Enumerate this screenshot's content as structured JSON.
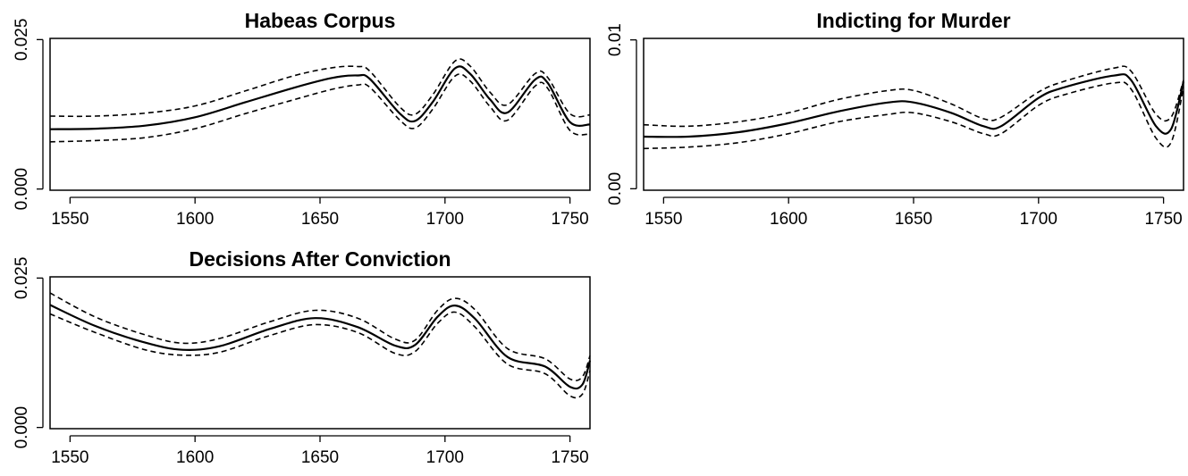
{
  "chart_data": [
    {
      "type": "line",
      "title": "Habeas Corpus",
      "xlabel": "",
      "ylabel": "",
      "xlim": [
        1542,
        1758
      ],
      "ylim": [
        -0.0002,
        0.0252
      ],
      "x_ticks": [
        1550,
        1600,
        1650,
        1700,
        1750
      ],
      "y_ticks": [
        0.0,
        0.025
      ],
      "y_tick_labels": [
        "0.000",
        "0.025"
      ],
      "grid": false,
      "x": [
        1542,
        1560,
        1580,
        1600,
        1620,
        1640,
        1655,
        1665,
        1670,
        1682,
        1688,
        1695,
        1704,
        1710,
        1718,
        1725,
        1736,
        1741,
        1750,
        1758
      ],
      "series": [
        {
          "style": "solid",
          "values": [
            0.01,
            0.0101,
            0.0106,
            0.012,
            0.0145,
            0.017,
            0.0186,
            0.019,
            0.0184,
            0.0126,
            0.0114,
            0.0145,
            0.0202,
            0.0193,
            0.015,
            0.0128,
            0.0183,
            0.0178,
            0.0112,
            0.0108
          ]
        },
        {
          "style": "dashed",
          "values": [
            0.0122,
            0.0122,
            0.0127,
            0.0139,
            0.0164,
            0.019,
            0.0203,
            0.0205,
            0.0197,
            0.0137,
            0.0125,
            0.0157,
            0.0214,
            0.0206,
            0.0162,
            0.0141,
            0.0193,
            0.0187,
            0.0126,
            0.0124
          ]
        },
        {
          "style": "dashed",
          "values": [
            0.0079,
            0.0081,
            0.0086,
            0.0101,
            0.0126,
            0.015,
            0.0167,
            0.0174,
            0.017,
            0.0115,
            0.0102,
            0.0133,
            0.0189,
            0.0181,
            0.0138,
            0.0115,
            0.0172,
            0.0169,
            0.0098,
            0.0092
          ]
        }
      ]
    },
    {
      "type": "line",
      "title": "Indicting for Murder",
      "xlabel": "",
      "ylabel": "",
      "xlim": [
        1542,
        1758
      ],
      "ylim": [
        -0.0001,
        0.0101
      ],
      "x_ticks": [
        1550,
        1600,
        1650,
        1700,
        1750
      ],
      "y_ticks": [
        0.0,
        0.01
      ],
      "y_tick_labels": [
        "0.00",
        "0.01"
      ],
      "grid": false,
      "x": [
        1542,
        1560,
        1580,
        1600,
        1620,
        1640,
        1650,
        1665,
        1678,
        1685,
        1700,
        1710,
        1730,
        1737,
        1747,
        1753,
        1758
      ],
      "series": [
        {
          "style": "solid",
          "values": [
            0.0035,
            0.0035,
            0.0038,
            0.0044,
            0.0052,
            0.0058,
            0.0058,
            0.0051,
            0.0042,
            0.0042,
            0.0061,
            0.0068,
            0.0076,
            0.0073,
            0.0042,
            0.004,
            0.0072
          ]
        },
        {
          "style": "dashed",
          "values": [
            0.0043,
            0.0042,
            0.0045,
            0.0051,
            0.006,
            0.0066,
            0.0066,
            0.0057,
            0.0047,
            0.0048,
            0.0065,
            0.0072,
            0.0081,
            0.0079,
            0.005,
            0.0048,
            0.0073
          ]
        },
        {
          "style": "dashed",
          "values": [
            0.0027,
            0.0028,
            0.0031,
            0.0037,
            0.0045,
            0.005,
            0.0051,
            0.0045,
            0.0037,
            0.0037,
            0.0056,
            0.0063,
            0.0071,
            0.0067,
            0.0034,
            0.0031,
            0.0068
          ]
        }
      ]
    },
    {
      "type": "line",
      "title": "Decisions After Conviction",
      "xlabel": "",
      "ylabel": "",
      "xlim": [
        1542,
        1758
      ],
      "ylim": [
        -0.0002,
        0.0252
      ],
      "x_ticks": [
        1550,
        1600,
        1650,
        1700,
        1750
      ],
      "y_ticks": [
        0.0,
        0.025
      ],
      "y_tick_labels": [
        "0.000",
        "0.025"
      ],
      "grid": false,
      "x": [
        1542,
        1560,
        1580,
        1595,
        1610,
        1630,
        1648,
        1665,
        1680,
        1688,
        1697,
        1704,
        1712,
        1725,
        1740,
        1750,
        1755,
        1758
      ],
      "series": [
        {
          "style": "solid",
          "values": [
            0.0205,
            0.017,
            0.0142,
            0.013,
            0.0136,
            0.0165,
            0.0183,
            0.0168,
            0.0137,
            0.0138,
            0.0185,
            0.0204,
            0.0182,
            0.0118,
            0.0102,
            0.0068,
            0.0072,
            0.0112
          ]
        },
        {
          "style": "dashed",
          "values": [
            0.0225,
            0.0185,
            0.0155,
            0.0141,
            0.0149,
            0.0177,
            0.0196,
            0.0183,
            0.0148,
            0.0146,
            0.0196,
            0.0216,
            0.0197,
            0.0132,
            0.0115,
            0.0081,
            0.0085,
            0.012
          ]
        },
        {
          "style": "dashed",
          "values": [
            0.019,
            0.0159,
            0.013,
            0.0121,
            0.0126,
            0.0154,
            0.0172,
            0.0159,
            0.0124,
            0.0127,
            0.0174,
            0.0193,
            0.0168,
            0.0106,
            0.009,
            0.0053,
            0.0056,
            0.0095
          ]
        }
      ]
    }
  ]
}
